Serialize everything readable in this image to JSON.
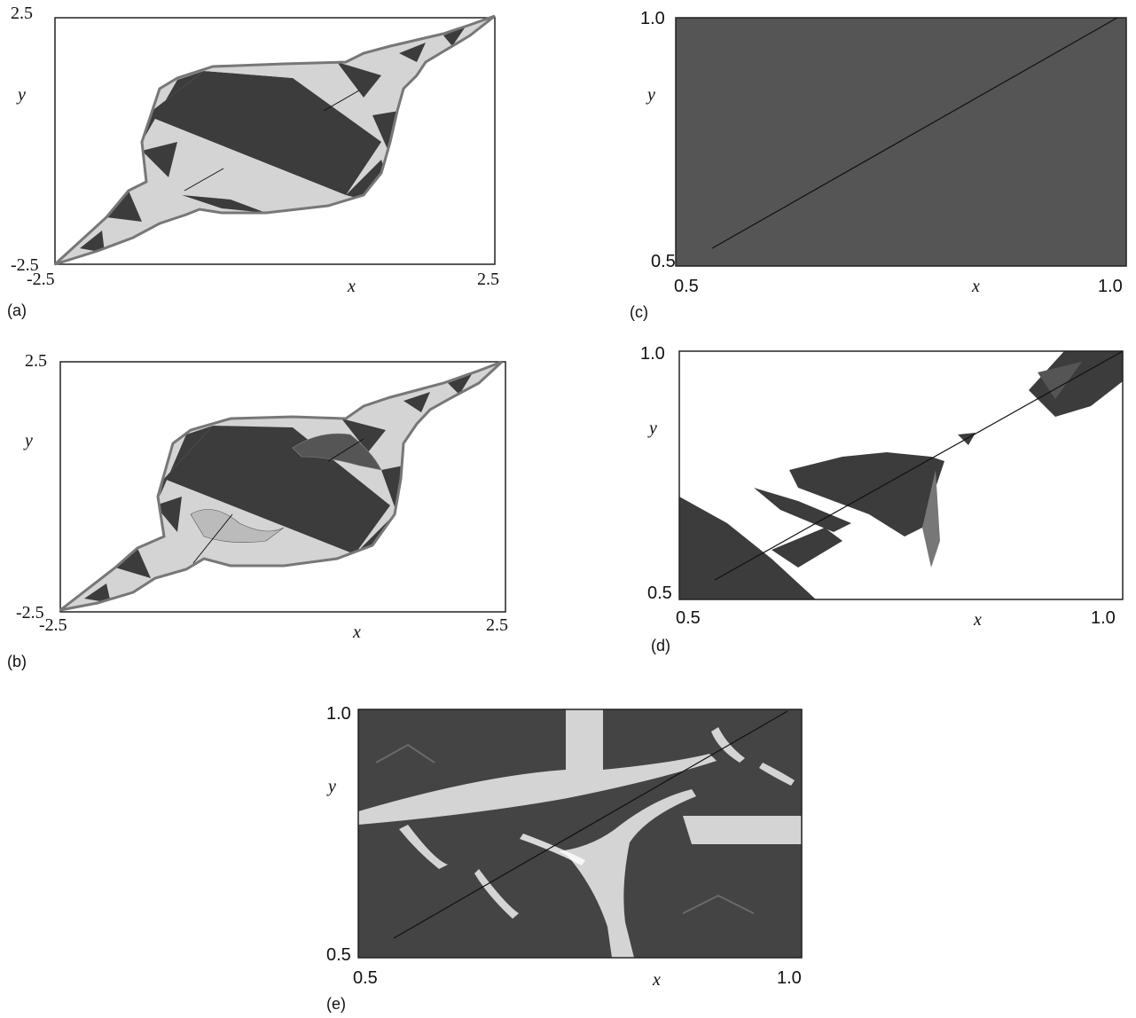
{
  "colors": {
    "dark": "#3c3c3c",
    "light": "#d4d4d4",
    "white": "#ffffff",
    "frame": "#222222"
  },
  "panels": [
    {
      "id": "a",
      "label": "(a)",
      "x_label": "x",
      "y_label": "y",
      "x_ticks": [
        "-2.5",
        "2.5"
      ],
      "y_ticks": [
        "2.5",
        "-2.5"
      ],
      "xlim": [
        -2.5,
        2.5
      ],
      "ylim": [
        -2.5,
        2.5
      ]
    },
    {
      "id": "b",
      "label": "(b)",
      "x_label": "x",
      "y_label": "y",
      "x_ticks": [
        "-2.5",
        "2.5"
      ],
      "y_ticks": [
        "2.5",
        "-2.5"
      ],
      "xlim": [
        -2.5,
        2.5
      ],
      "ylim": [
        -2.5,
        2.5
      ]
    },
    {
      "id": "c",
      "label": "(c)",
      "x_label": "x",
      "y_label": "y",
      "x_ticks": [
        "0.5",
        "1.0"
      ],
      "y_ticks": [
        "1.0",
        "0.5"
      ],
      "xlim": [
        0.5,
        1.0
      ],
      "ylim": [
        0.5,
        1.0
      ]
    },
    {
      "id": "d",
      "label": "(d)",
      "x_label": "x",
      "y_label": "y",
      "x_ticks": [
        "0.5",
        "1.0"
      ],
      "y_ticks": [
        "1.0",
        "0.5"
      ],
      "xlim": [
        0.5,
        1.0
      ],
      "ylim": [
        0.5,
        1.0
      ]
    },
    {
      "id": "e",
      "label": "(e)",
      "x_label": "x",
      "y_label": "y",
      "x_ticks": [
        "0.5",
        "1.0"
      ],
      "y_ticks": [
        "1.0",
        "0.5"
      ],
      "xlim": [
        0.5,
        1.0
      ],
      "ylim": [
        0.5,
        1.0
      ]
    }
  ]
}
